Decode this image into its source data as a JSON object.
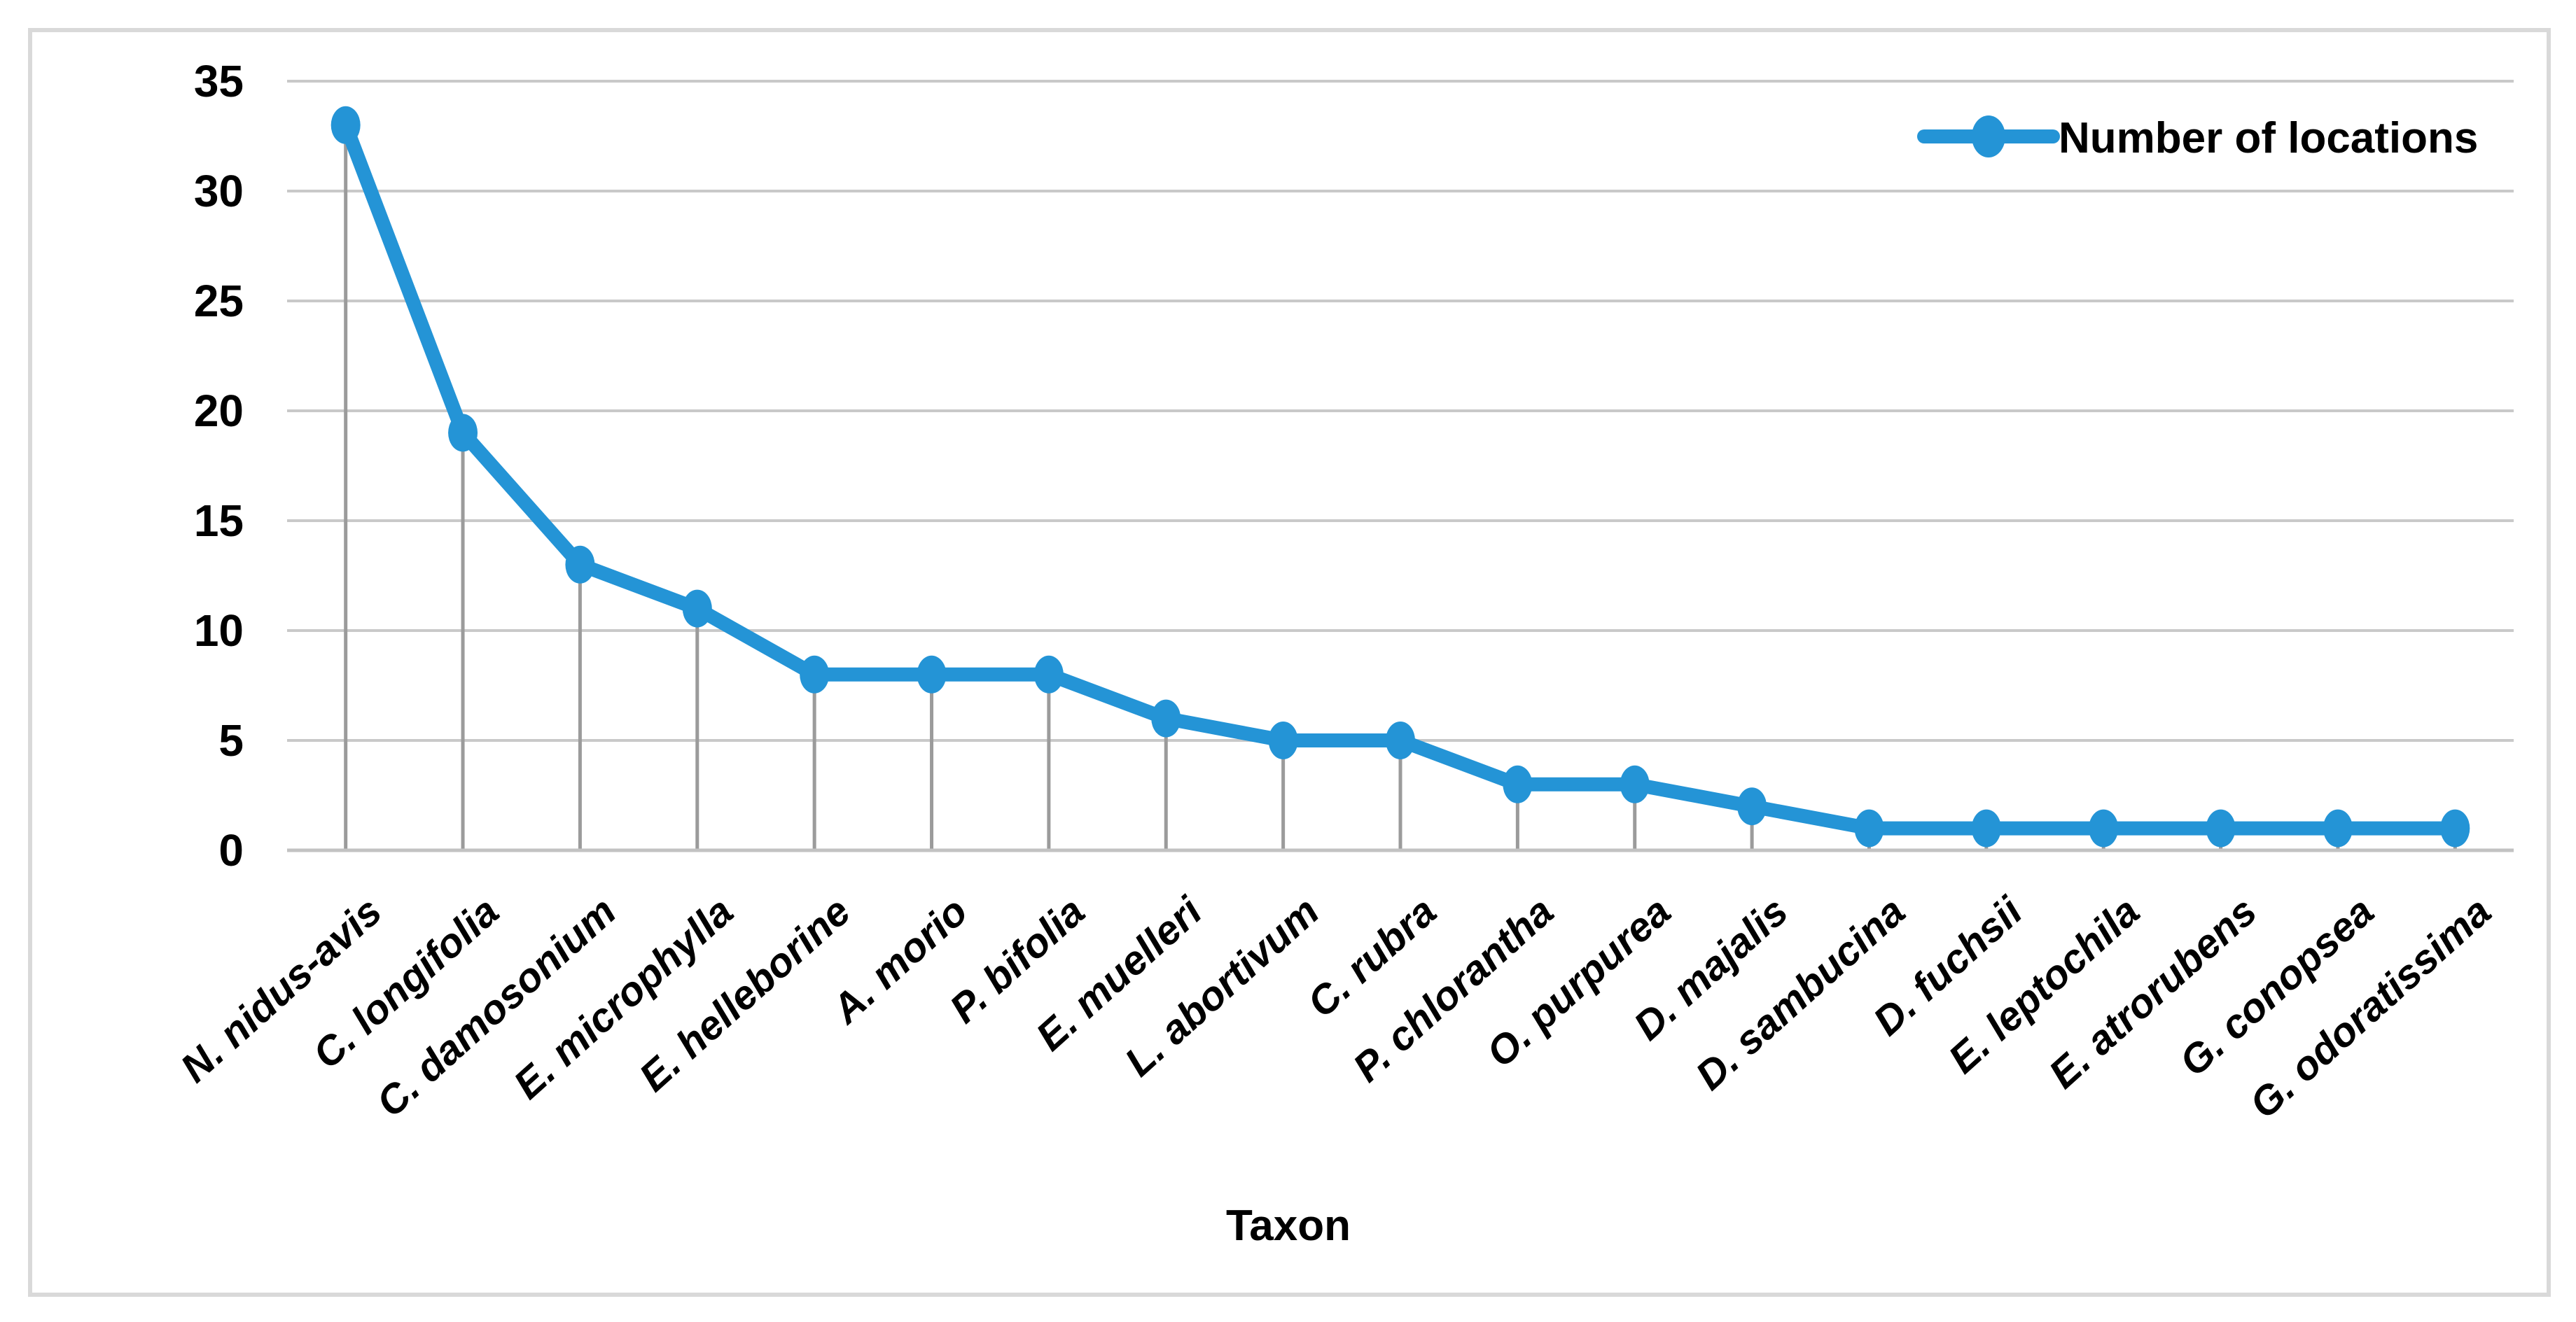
{
  "figure": {
    "background": "#ffffff"
  },
  "legend": {
    "label": "Number of locations",
    "position": "top-right"
  },
  "x_axis": {
    "title": "Taxon"
  },
  "y_axis": {
    "tick_labels": [
      "0",
      "5",
      "10",
      "15",
      "20",
      "25",
      "30",
      "35"
    ],
    "min": 0,
    "max": 35,
    "step": 5
  },
  "colors": {
    "series_line": "#2494d6",
    "gridline": "#c9c9c9",
    "axis_line": "#c2c2c2",
    "drop_line": "#9b9b9b",
    "figure_border": "#d9d9d9",
    "text": "#000000",
    "background": "#ffffff"
  },
  "chart_data": {
    "type": "line",
    "title": "",
    "xlabel": "Taxon",
    "ylabel": "",
    "categories": [
      "N. nidus-avis",
      "C. longifolia",
      "C. damosonium",
      "E. microphylla",
      "E. helleborine",
      "A. morio",
      "P. bifolia",
      "E. muelleri",
      "L. abortivum",
      "C. rubra",
      "P. chlorantha",
      "O. purpurea",
      "D. majalis",
      "D. sambucina",
      "D. fuchsii",
      "E. leptochila",
      "E. atrorubens",
      "G. conopsea",
      "G. odoratissima"
    ],
    "series": [
      {
        "name": "Number of locations",
        "values": [
          33,
          19,
          13,
          11,
          8,
          8,
          8,
          6,
          5,
          5,
          3,
          3,
          2,
          1,
          1,
          1,
          1,
          1,
          1
        ]
      }
    ],
    "ylim": [
      0,
      35
    ],
    "ytick_step": 5,
    "grid": true,
    "drop_lines": true,
    "marker": "circle",
    "legend_position": "top-right"
  }
}
